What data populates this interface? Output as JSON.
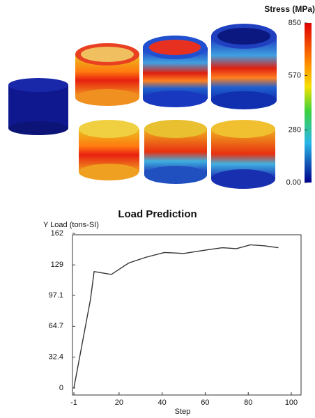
{
  "stress_figure": {
    "colorbar_title": "Stress (MPa)",
    "colorbar_lim": [
      0,
      850
    ],
    "colorbar_ticks": [
      850,
      570,
      280,
      {
        "value": 0,
        "label": "0.00"
      }
    ]
  },
  "chart_data": {
    "type": "line",
    "title": "Load Prediction",
    "y_label": "Y Load (tons-SI)",
    "x_label": "Step",
    "xlim": [
      -1,
      100
    ],
    "xticks": [
      -1,
      20,
      40,
      60,
      80,
      100
    ],
    "ylim": [
      0,
      162
    ],
    "yticks": [
      0,
      32.4,
      64.7,
      97.1,
      129,
      162
    ],
    "series": [
      {
        "color": "#333333",
        "x": [
          -1,
          6.7,
          8.4,
          16.4,
          24.5,
          32.5,
          41,
          50,
          61.6,
          68,
          74.5,
          81,
          87.4,
          94
        ],
        "values": [
          0,
          92.7,
          122,
          119,
          131,
          137,
          142,
          141,
          145,
          147,
          146,
          150,
          149,
          147
        ]
      }
    ]
  }
}
